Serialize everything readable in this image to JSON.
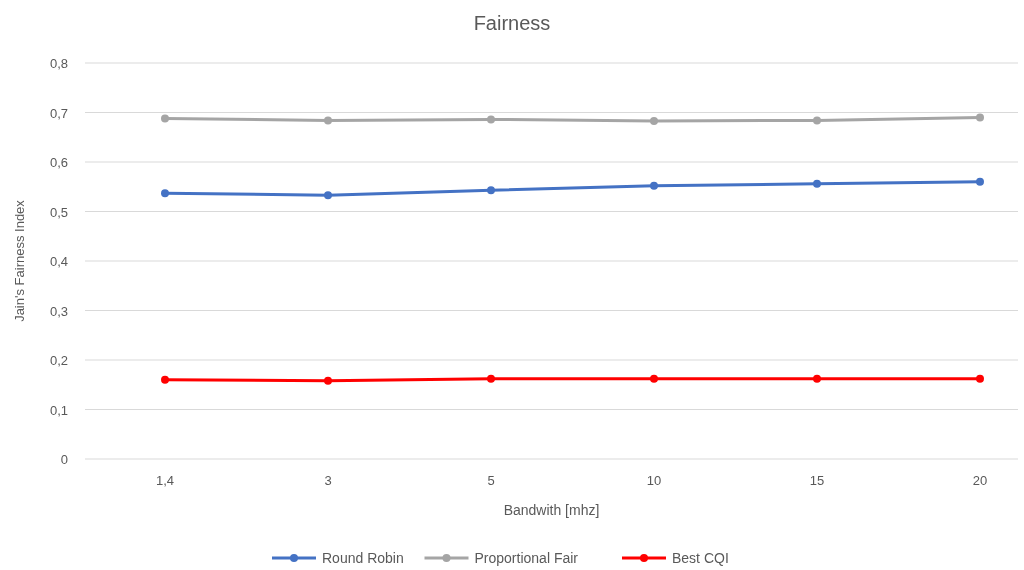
{
  "chart_data": {
    "type": "line",
    "title": "Fairness",
    "xlabel": "Bandwith [mhz]",
    "ylabel": "Jain's Fairness Index",
    "categories": [
      "1,4",
      "3",
      "5",
      "10",
      "15",
      "20"
    ],
    "series": [
      {
        "name": "Round Robin",
        "color": "#4472c4",
        "values": [
          0.537,
          0.533,
          0.543,
          0.552,
          0.556,
          0.56
        ]
      },
      {
        "name": "Proportional Fair",
        "color": "#a5a5a5",
        "values": [
          0.688,
          0.684,
          0.686,
          0.683,
          0.684,
          0.69
        ]
      },
      {
        "name": "Best CQI",
        "color": "#ff0000",
        "values": [
          0.16,
          0.158,
          0.162,
          0.162,
          0.162,
          0.162
        ]
      }
    ],
    "ylim": [
      0,
      0.8
    ],
    "yticks": [
      0,
      {
        "value": 0.1,
        "label": "0,1"
      },
      {
        "value": 0.2,
        "label": "0,2"
      },
      {
        "value": 0.3,
        "label": "0,3"
      },
      {
        "value": 0.4,
        "label": "0,4"
      },
      {
        "value": 0.5,
        "label": "0,5"
      },
      {
        "value": 0.6,
        "label": "0,6"
      },
      {
        "value": 0.7,
        "label": "0,7"
      },
      {
        "value": 0.8,
        "label": "0,8"
      }
    ],
    "grid": "y",
    "legend": "bottom",
    "marker": "circle",
    "line_style": "solid"
  }
}
